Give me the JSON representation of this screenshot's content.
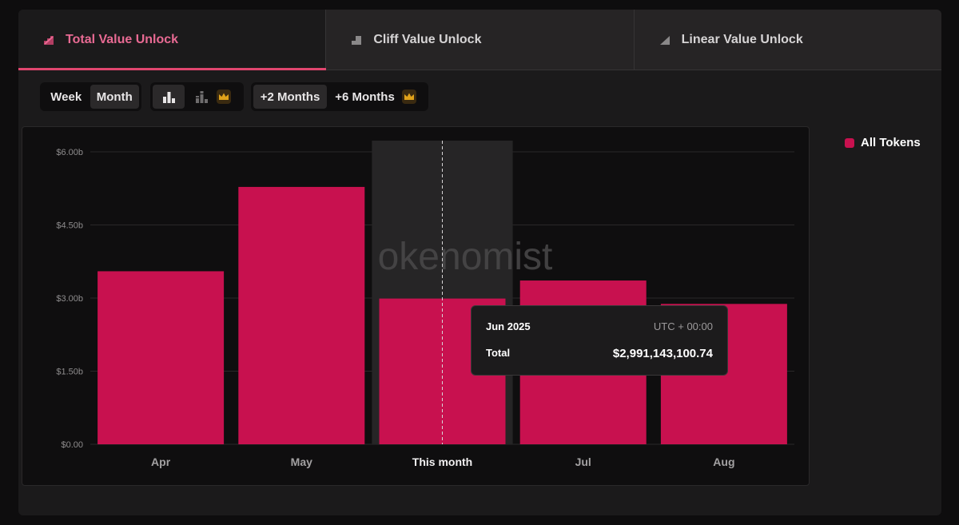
{
  "tabs": [
    {
      "label": "Total Value Unlock",
      "active": true,
      "icon": "total-unlock-icon"
    },
    {
      "label": "Cliff Value Unlock",
      "active": false,
      "icon": "cliff-unlock-icon"
    },
    {
      "label": "Linear Value Unlock",
      "active": false,
      "icon": "linear-unlock-icon"
    }
  ],
  "controls": {
    "week_label": "Week",
    "month_label": "Month",
    "plus2_label": "+2 Months",
    "plus6_label": "+6 Months"
  },
  "legend": {
    "label": "All Tokens",
    "color": "#c8114f"
  },
  "watermark": "okenomist",
  "tooltip": {
    "date": "Jun 2025",
    "timezone": "UTC + 00:00",
    "label": "Total",
    "value": "$2,991,143,100.74"
  },
  "colors": {
    "bar": "#c8114f",
    "accent": "#e0466f",
    "crown": "#e0a21a"
  },
  "chart_data": {
    "type": "bar",
    "categories": [
      "Apr",
      "May",
      "This month",
      "Jul",
      "Aug"
    ],
    "series": [
      {
        "name": "All Tokens",
        "values": [
          3.55,
          5.28,
          2.99,
          3.36,
          2.88
        ]
      }
    ],
    "unit": "billions USD",
    "ylim": [
      0,
      6
    ],
    "yticks": [
      0,
      1.5,
      3,
      4.5,
      6
    ],
    "ytick_labels": [
      "$0.00",
      "$1.50b",
      "$3.00b",
      "$4.50b",
      "$6.00b"
    ],
    "highlighted_index": 2,
    "grid": true
  }
}
